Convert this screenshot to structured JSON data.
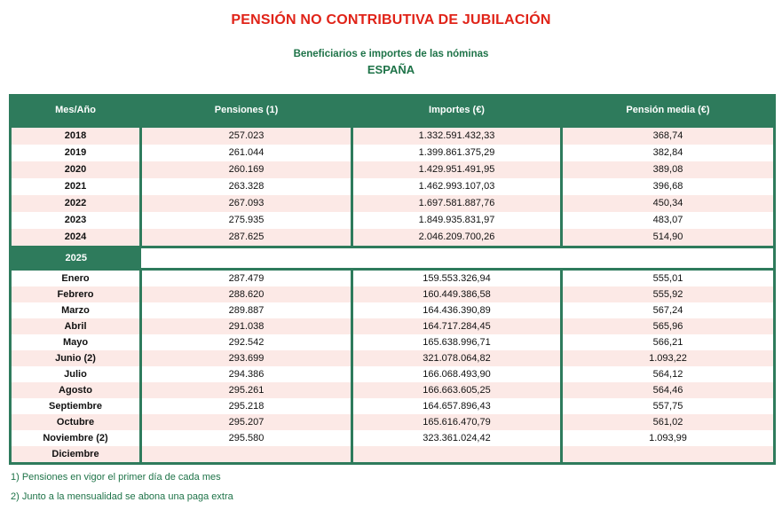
{
  "title": "PENSIÓN NO CONTRIBUTIVA DE JUBILACIÓN",
  "subtitle": "Beneficiarios e importes de las nóminas",
  "region": "ESPAÑA",
  "colors": {
    "title_red": "#e02318",
    "header_green": "#2e7b5c",
    "row_pink": "#fce9e6",
    "text_green": "#1e7348"
  },
  "table": {
    "headers": [
      "Mes/Año",
      "Pensiones (1)",
      "Importes (€)",
      "Pensión media (€)"
    ],
    "section_label": "2025",
    "years": [
      {
        "label": "2018",
        "pensiones": "257.023",
        "importes": "1.332.591.432,33",
        "media": "368,74"
      },
      {
        "label": "2019",
        "pensiones": "261.044",
        "importes": "1.399.861.375,29",
        "media": "382,84"
      },
      {
        "label": "2020",
        "pensiones": "260.169",
        "importes": "1.429.951.491,95",
        "media": "389,08"
      },
      {
        "label": "2021",
        "pensiones": "263.328",
        "importes": "1.462.993.107,03",
        "media": "396,68"
      },
      {
        "label": "2022",
        "pensiones": "267.093",
        "importes": "1.697.581.887,76",
        "media": "450,34"
      },
      {
        "label": "2023",
        "pensiones": "275.935",
        "importes": "1.849.935.831,97",
        "media": "483,07"
      },
      {
        "label": "2024",
        "pensiones": "287.625",
        "importes": "2.046.209.700,26",
        "media": "514,90"
      }
    ],
    "months": [
      {
        "label": "Enero",
        "pensiones": "287.479",
        "importes": "159.553.326,94",
        "media": "555,01"
      },
      {
        "label": "Febrero",
        "pensiones": "288.620",
        "importes": "160.449.386,58",
        "media": "555,92"
      },
      {
        "label": "Marzo",
        "pensiones": "289.887",
        "importes": "164.436.390,89",
        "media": "567,24"
      },
      {
        "label": "Abril",
        "pensiones": "291.038",
        "importes": "164.717.284,45",
        "media": "565,96"
      },
      {
        "label": "Mayo",
        "pensiones": "292.542",
        "importes": "165.638.996,71",
        "media": "566,21"
      },
      {
        "label": "Junio (2)",
        "pensiones": "293.699",
        "importes": "321.078.064,82",
        "media": "1.093,22"
      },
      {
        "label": "Julio",
        "pensiones": "294.386",
        "importes": "166.068.493,90",
        "media": "564,12"
      },
      {
        "label": "Agosto",
        "pensiones": "295.261",
        "importes": "166.663.605,25",
        "media": "564,46"
      },
      {
        "label": "Septiembre",
        "pensiones": "295.218",
        "importes": "164.657.896,43",
        "media": "557,75"
      },
      {
        "label": "Octubre",
        "pensiones": "295.207",
        "importes": "165.616.470,79",
        "media": "561,02"
      },
      {
        "label": "Noviembre (2)",
        "pensiones": "295.580",
        "importes": "323.361.024,42",
        "media": "1.093,99"
      },
      {
        "label": "Diciembre",
        "pensiones": "",
        "importes": "",
        "media": ""
      }
    ]
  },
  "footnotes": [
    "1) Pensiones en vigor el primer día de cada mes",
    "2) Junto a la mensualidad se abona una paga extra"
  ]
}
